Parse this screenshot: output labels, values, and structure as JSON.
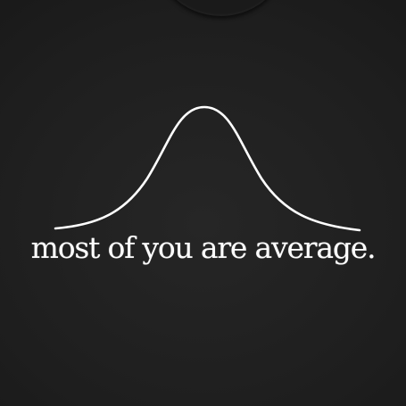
{
  "print": {
    "slogan": "most of you are average.",
    "ink_color": "#ffffff",
    "fabric_color": "#1f1f1f",
    "graphic": "bell-curve"
  }
}
